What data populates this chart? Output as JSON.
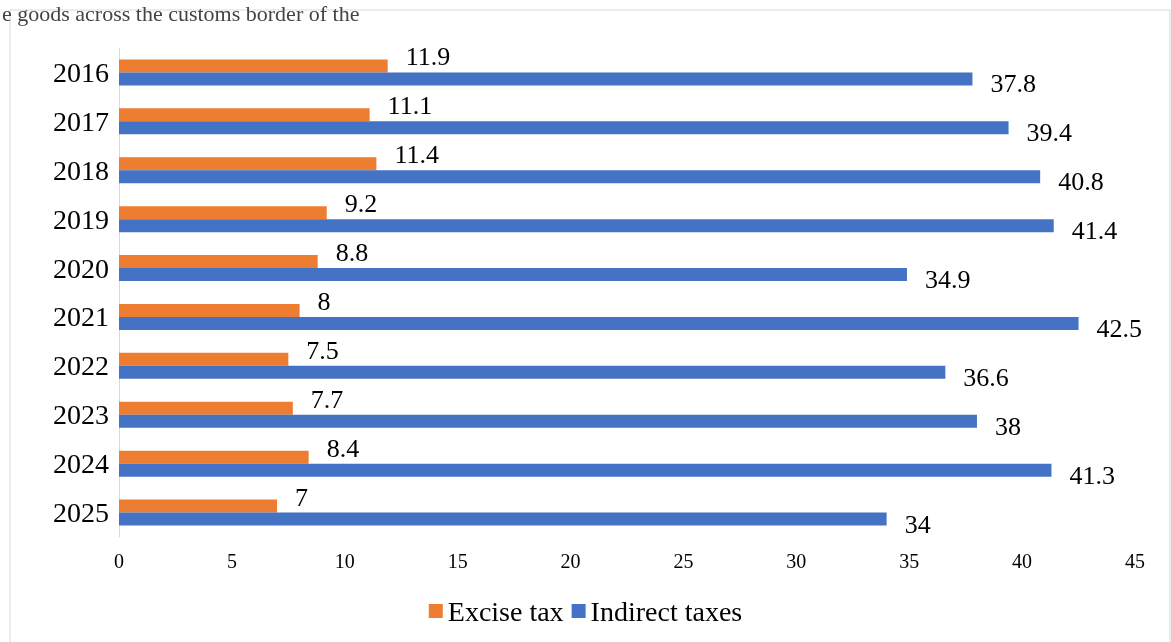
{
  "chart_data": {
    "type": "bar",
    "orientation": "horizontal",
    "annotations": [
      "e goods across the customs border of the"
    ],
    "categories": [
      "2016",
      "2017",
      "2018",
      "2019",
      "2020",
      "2021",
      "2022",
      "2023",
      "2024",
      "2025"
    ],
    "series": [
      {
        "name": "Excise tax",
        "color": "#ed7d31",
        "values": [
          11.9,
          11.1,
          11.4,
          9.2,
          8.8,
          8,
          7.5,
          7.7,
          8.4,
          7
        ]
      },
      {
        "name": "Indirect taxes",
        "color": "#4472c4",
        "values": [
          37.8,
          39.4,
          40.8,
          41.4,
          34.9,
          42.5,
          36.6,
          38,
          41.3,
          34
        ]
      }
    ],
    "xlim": [
      0,
      45
    ],
    "xticks": [
      0,
      5,
      10,
      15,
      20,
      25,
      30,
      35,
      40,
      45
    ],
    "grid": false,
    "legend": "bottom",
    "data_labels": true
  }
}
